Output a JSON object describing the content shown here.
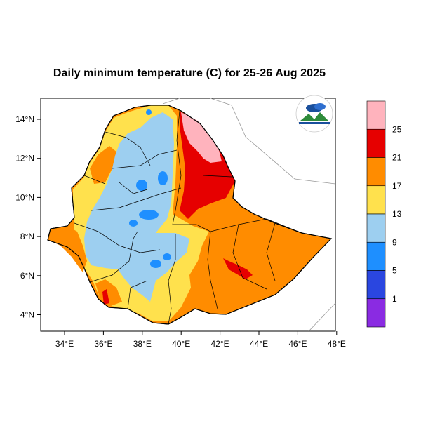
{
  "title": "Daily minimum temperature (C) for 25-26 Aug 2025",
  "lon_ticks": [
    "34°E",
    "36°E",
    "38°E",
    "40°E",
    "42°E",
    "44°E",
    "46°E",
    "48°E"
  ],
  "lat_ticks": [
    "14°N",
    "12°N",
    "10°N",
    "8°N",
    "6°N",
    "4°N"
  ],
  "legend": {
    "labels": [
      "25",
      "21",
      "17",
      "13",
      "9",
      "5",
      "1"
    ],
    "colors": [
      "#ffb3bd",
      "#e60000",
      "#ff8c00",
      "#ffe14d",
      "#9dcff0",
      "#1e8fff",
      "#2a46e0",
      "#8a2be2"
    ]
  },
  "colors": {
    "red": "#e60000",
    "pink": "#ffb3bd",
    "orange": "#ff8c00",
    "yellow": "#ffe14d",
    "light_blue": "#9dcff0",
    "mid_blue": "#1e8fff"
  }
}
